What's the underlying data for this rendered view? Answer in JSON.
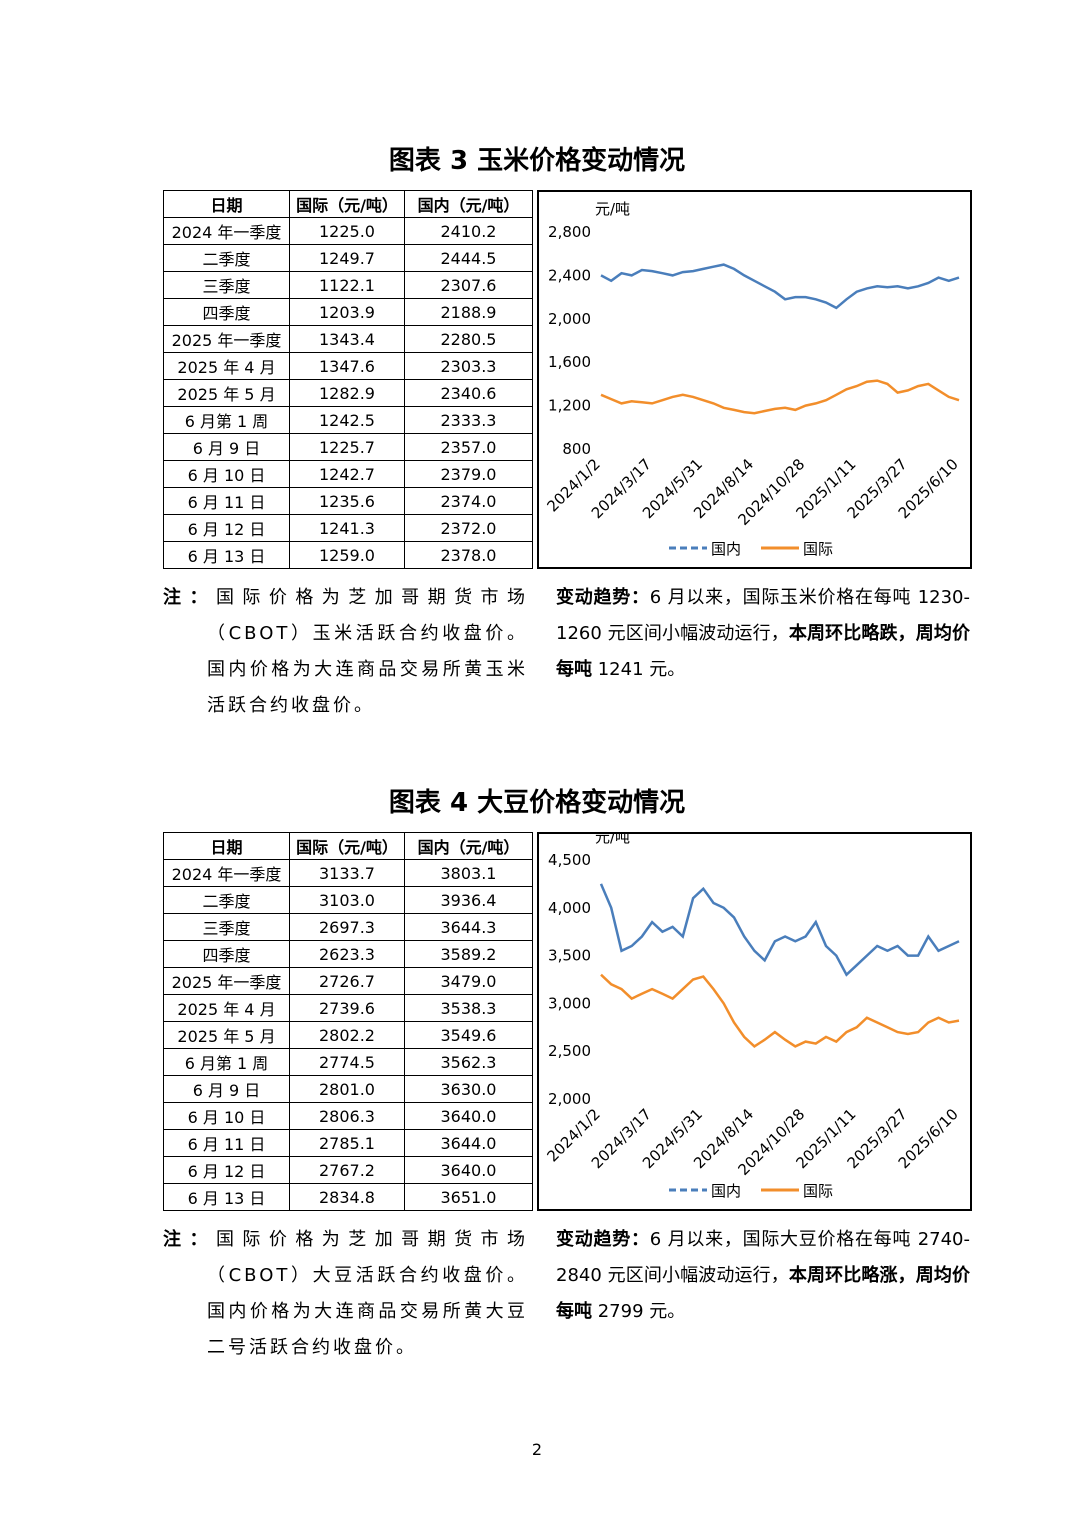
{
  "sections": [
    {
      "title": "图表 3  玉米价格变动情况",
      "table": {
        "header": [
          "日期",
          "国际（元/吨）",
          "国内（元/吨）"
        ],
        "rows": [
          [
            "2024 年一季度",
            "1225.0",
            "2410.2"
          ],
          [
            "二季度",
            "1249.7",
            "2444.5"
          ],
          [
            "三季度",
            "1122.1",
            "2307.6"
          ],
          [
            "四季度",
            "1203.9",
            "2188.9"
          ],
          [
            "2025 年一季度",
            "1343.4",
            "2280.5"
          ],
          [
            "2025 年 4 月",
            "1347.6",
            "2303.3"
          ],
          [
            "2025 年 5 月",
            "1282.9",
            "2340.6"
          ],
          [
            "6 月第 1 周",
            "1242.5",
            "2333.3"
          ],
          [
            "6 月 9 日",
            "1225.7",
            "2357.0"
          ],
          [
            "6 月 10 日",
            "1242.7",
            "2379.0"
          ],
          [
            "6 月 11 日",
            "1235.6",
            "2374.0"
          ],
          [
            "6 月 12 日",
            "1241.3",
            "2372.0"
          ],
          [
            "6 月 13 日",
            "1259.0",
            "2378.0"
          ]
        ]
      },
      "note": {
        "label": "注：",
        "text": "国际价格为芝加哥期货市场（CBOT）玉米活跃合约收盘价。国内价格为大连商品交易所黄玉米活跃合约收盘价。"
      },
      "trend": {
        "label": "变动趋势：",
        "text": "6 月以来，国际玉米价格在每吨 1230-1260 元区间小幅波动运行，",
        "bold": "本周环比略跌，周均价每吨",
        "tail": " 1241 元。"
      }
    },
    {
      "title": "图表 4  大豆价格变动情况",
      "table": {
        "header": [
          "日期",
          "国际（元/吨）",
          "国内（元/吨）"
        ],
        "rows": [
          [
            "2024 年一季度",
            "3133.7",
            "3803.1"
          ],
          [
            "二季度",
            "3103.0",
            "3936.4"
          ],
          [
            "三季度",
            "2697.3",
            "3644.3"
          ],
          [
            "四季度",
            "2623.3",
            "3589.2"
          ],
          [
            "2025 年一季度",
            "2726.7",
            "3479.0"
          ],
          [
            "2025 年 4 月",
            "2739.6",
            "3538.3"
          ],
          [
            "2025 年 5 月",
            "2802.2",
            "3549.6"
          ],
          [
            "6 月第 1 周",
            "2774.5",
            "3562.3"
          ],
          [
            "6 月 9 日",
            "2801.0",
            "3630.0"
          ],
          [
            "6 月 10 日",
            "2806.3",
            "3640.0"
          ],
          [
            "6 月 11 日",
            "2785.1",
            "3644.0"
          ],
          [
            "6 月 12 日",
            "2767.2",
            "3640.0"
          ],
          [
            "6 月 13 日",
            "2834.8",
            "3651.0"
          ]
        ]
      },
      "note": {
        "label": "注：",
        "text": "国际价格为芝加哥期货市场（CBOT）大豆活跃合约收盘价。国内价格为大连商品交易所黄大豆二号活跃合约收盘价。"
      },
      "trend": {
        "label": "变动趋势：",
        "text": "6 月以来，国际大豆价格在每吨 2740-2840 元区间小幅波动运行，",
        "bold": "本周环比略涨，周均价每吨",
        "tail": " 2799 元。"
      }
    }
  ],
  "chart_data": [
    {
      "type": "line",
      "y_label": "元/吨",
      "categories": [
        "2024/1/2",
        null,
        null,
        null,
        null,
        "2024/3/17",
        null,
        null,
        null,
        null,
        "2024/5/31",
        null,
        null,
        null,
        null,
        "2024/8/14",
        null,
        null,
        null,
        null,
        "2024/10/28",
        null,
        null,
        null,
        null,
        "2025/1/11",
        null,
        null,
        null,
        null,
        "2025/3/27",
        null,
        null,
        null,
        null,
        "2025/6/10"
      ],
      "ylim": [
        800,
        2800
      ],
      "yticks": [
        800,
        {
          "value": 1200,
          "label": "1,200"
        },
        {
          "value": 1600,
          "label": "1,600"
        },
        {
          "value": 2000,
          "label": "2,000"
        },
        {
          "value": 2400,
          "label": "2,400"
        },
        {
          "value": 2800,
          "label": "2,800"
        }
      ],
      "series": [
        {
          "name": "国内",
          "color": "#4a7ebb",
          "values": [
            2400,
            2350,
            2420,
            2400,
            2450,
            2440,
            2420,
            2400,
            2430,
            2440,
            2460,
            2480,
            2500,
            2460,
            2400,
            2350,
            2300,
            2250,
            2180,
            2200,
            2200,
            2180,
            2150,
            2100,
            2180,
            2250,
            2280,
            2300,
            2290,
            2300,
            2280,
            2300,
            2330,
            2380,
            2350,
            2380
          ]
        },
        {
          "name": "国际",
          "color": "#f28e2b",
          "values": [
            1300,
            1260,
            1220,
            1240,
            1230,
            1220,
            1250,
            1280,
            1300,
            1280,
            1250,
            1220,
            1180,
            1160,
            1140,
            1130,
            1150,
            1170,
            1180,
            1160,
            1200,
            1220,
            1250,
            1300,
            1350,
            1380,
            1420,
            1430,
            1400,
            1320,
            1340,
            1380,
            1400,
            1340,
            1280,
            1250
          ]
        }
      ]
    },
    {
      "type": "line",
      "y_label": "元/吨",
      "categories": [
        "2024/1/2",
        null,
        null,
        null,
        null,
        "2024/3/17",
        null,
        null,
        null,
        null,
        "2024/5/31",
        null,
        null,
        null,
        null,
        "2024/8/14",
        null,
        null,
        null,
        null,
        "2024/10/28",
        null,
        null,
        null,
        null,
        "2025/1/11",
        null,
        null,
        null,
        null,
        "2025/3/27",
        null,
        null,
        null,
        null,
        "2025/6/10"
      ],
      "ylim": [
        2000,
        4500
      ],
      "yticks": [
        {
          "value": 2000,
          "label": "2,000"
        },
        {
          "value": 2500,
          "label": "2,500"
        },
        {
          "value": 3000,
          "label": "3,000"
        },
        {
          "value": 3500,
          "label": "3,500"
        },
        {
          "value": 4000,
          "label": "4,000"
        },
        {
          "value": 4500,
          "label": "4,500"
        }
      ],
      "series": [
        {
          "name": "国内",
          "color": "#4a7ebb",
          "values": [
            4250,
            4000,
            3550,
            3600,
            3700,
            3850,
            3750,
            3800,
            3700,
            4100,
            4200,
            4050,
            4000,
            3900,
            3700,
            3550,
            3450,
            3650,
            3700,
            3650,
            3700,
            3850,
            3600,
            3500,
            3300,
            3400,
            3500,
            3600,
            3550,
            3600,
            3500,
            3500,
            3700,
            3550,
            3600,
            3650
          ]
        },
        {
          "name": "国际",
          "color": "#f28e2b",
          "values": [
            3300,
            3200,
            3150,
            3050,
            3100,
            3150,
            3100,
            3050,
            3150,
            3250,
            3280,
            3150,
            3000,
            2800,
            2650,
            2550,
            2620,
            2700,
            2620,
            2550,
            2600,
            2580,
            2650,
            2600,
            2700,
            2750,
            2850,
            2800,
            2750,
            2700,
            2680,
            2700,
            2800,
            2850,
            2800,
            2820
          ]
        }
      ]
    }
  ],
  "page_number": "2"
}
